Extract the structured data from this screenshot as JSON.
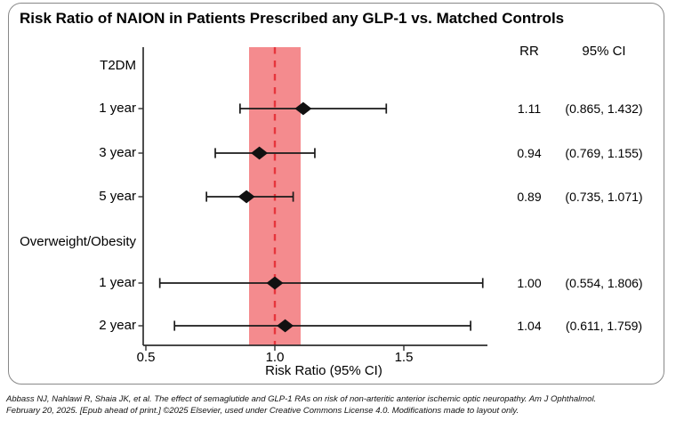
{
  "title": "Risk Ratio of NAION in Patients Prescribed any GLP-1 vs. Matched Controls",
  "table_headers": {
    "rr": "RR",
    "ci": "95% CI"
  },
  "chart_data": {
    "type": "forest",
    "title": "Risk Ratio of NAION in Patients Prescribed any GLP-1 vs. Matched Controls",
    "xlabel": "Risk Ratio (95% CI)",
    "xlim": [
      0.49,
      1.83
    ],
    "x_ticks": [
      0.5,
      1.0,
      1.5
    ],
    "x_tick_labels": [
      "0.5",
      "1.0",
      "1.5"
    ],
    "reference_line_x": 1.0,
    "shaded_band_x": [
      0.9,
      1.1
    ],
    "grid": false,
    "legend": false,
    "groups": [
      {
        "label": "T2DM",
        "rows": [
          {
            "label": "1 year",
            "rr": 1.11,
            "ci_low": 0.865,
            "ci_high": 1.432,
            "rr_text": "1.11",
            "ci_text": "(0.865, 1.432)"
          },
          {
            "label": "3 year",
            "rr": 0.94,
            "ci_low": 0.769,
            "ci_high": 1.155,
            "rr_text": "0.94",
            "ci_text": "(0.769, 1.155)"
          },
          {
            "label": "5 year",
            "rr": 0.89,
            "ci_low": 0.735,
            "ci_high": 1.071,
            "rr_text": "0.89",
            "ci_text": "(0.735, 1.071)"
          }
        ]
      },
      {
        "label": "Overweight/Obesity",
        "rows": [
          {
            "label": "1 year",
            "rr": 1.0,
            "ci_low": 0.554,
            "ci_high": 1.806,
            "rr_text": "1.00",
            "ci_text": "(0.554, 1.806)"
          },
          {
            "label": "2 year",
            "rr": 1.04,
            "ci_low": 0.611,
            "ci_high": 1.759,
            "rr_text": "1.04",
            "ci_text": "(0.611, 1.759)"
          }
        ]
      }
    ]
  },
  "colors": {
    "shaded_band": "#F48B8E",
    "reference_line": "#E6353C",
    "marker": "#111111",
    "whisker": "#1a1a1a",
    "axis": "#2e2e2e",
    "border": "#888888"
  },
  "footer": {
    "line1": "Abbass NJ, Nahlawi R, Shaia JK, et al. The effect of semaglutide and GLP-1 RAs on risk of non-arteritic anterior ischemic optic neuropathy. Am J Ophthalmol.",
    "line2": "February 20, 2025. [Epub ahead of print.] ©2025 Elsevier, used under Creative Commons License 4.0. Modifications made to layout only."
  }
}
